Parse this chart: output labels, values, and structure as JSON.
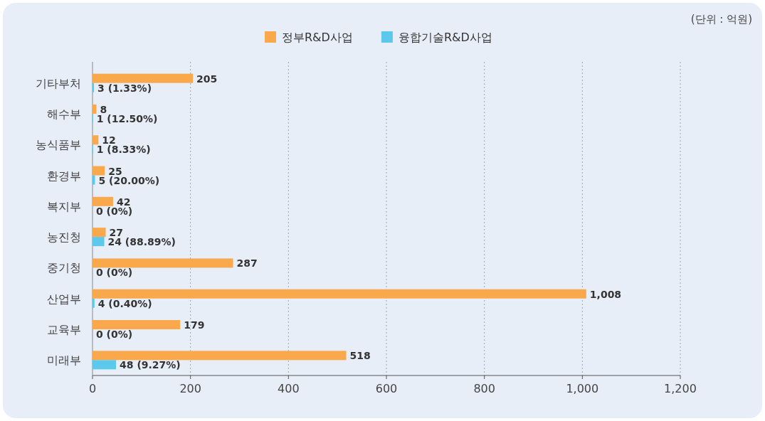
{
  "chart_data": {
    "type": "bar",
    "orientation": "horizontal",
    "annotations": [
      "(단위 : 억원)"
    ],
    "categories": [
      "기타부처",
      "해수부",
      "농식품부",
      "환경부",
      "복지부",
      "농진청",
      "중기청",
      "산업부",
      "교육부",
      "미래부"
    ],
    "series": [
      {
        "name": "정부R&D사업",
        "color": "#f9a94b",
        "values": [
          205,
          8,
          12,
          25,
          42,
          27,
          287,
          1008,
          179,
          518
        ],
        "value_labels": [
          "205",
          "8",
          "12",
          "25",
          "42",
          "27",
          "287",
          "1,008",
          "179",
          "518"
        ]
      },
      {
        "name": "융합기술R&D사업",
        "color": "#5bc8ec",
        "values": [
          3,
          1,
          1,
          5,
          0,
          24,
          0,
          4,
          0,
          48
        ],
        "value_labels": [
          "3 (1.33%)",
          "1 (12.50%)",
          "1 (8.33%)",
          "5 (20.00%)",
          "0 (0%)",
          "24 (88.89%)",
          "0 (0%)",
          "4 (0.40%)",
          "0 (0%)",
          "48 (9.27%)"
        ]
      }
    ],
    "xlim": [
      0,
      1200
    ],
    "xticks": [
      0,
      200,
      400,
      600,
      800,
      {
        "value": 1000,
        "label": "1,000"
      },
      {
        "value": 1200,
        "label": "1,200"
      }
    ],
    "grid": "x",
    "legend": "top"
  }
}
